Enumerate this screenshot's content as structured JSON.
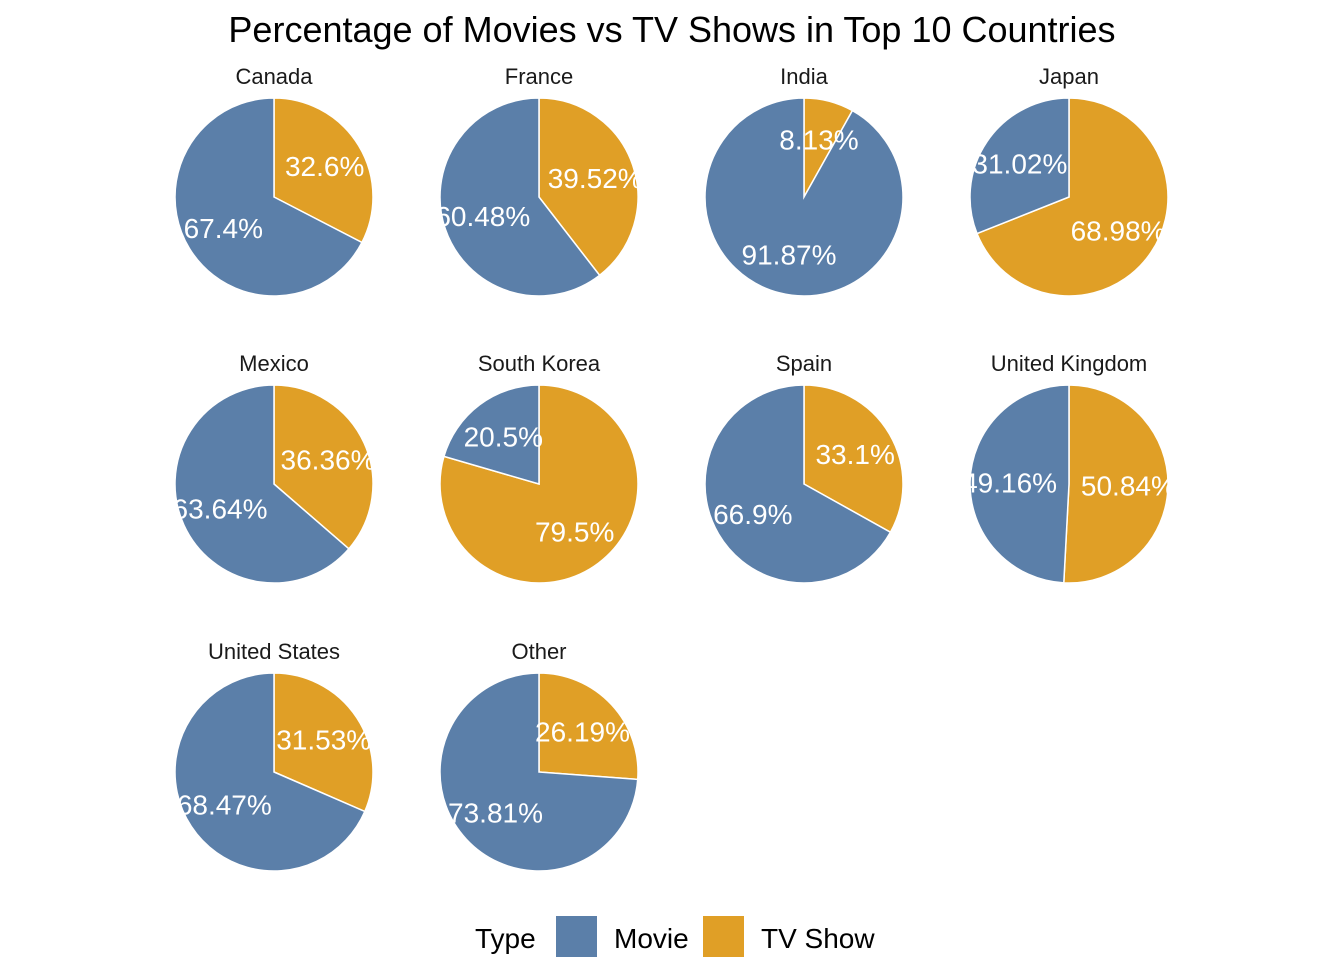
{
  "chart_data": {
    "type": "pie",
    "title": "Percentage of Movies vs TV Shows in Top 10 Countries",
    "legend": {
      "title": "Type",
      "position": "bottom",
      "entries": [
        {
          "name": "Movie",
          "color": "#5b7fa9"
        },
        {
          "name": "TV Show",
          "color": "#e09f26"
        }
      ]
    },
    "facets": [
      {
        "country": "Canada",
        "slices": [
          {
            "type": "Movie",
            "value": 67.4,
            "label": "67.4%"
          },
          {
            "type": "TV Show",
            "value": 32.6,
            "label": "32.6%"
          }
        ]
      },
      {
        "country": "France",
        "slices": [
          {
            "type": "Movie",
            "value": 60.48,
            "label": "60.48%"
          },
          {
            "type": "TV Show",
            "value": 39.52,
            "label": "39.52%"
          }
        ]
      },
      {
        "country": "India",
        "slices": [
          {
            "type": "Movie",
            "value": 91.87,
            "label": "91.87%"
          },
          {
            "type": "TV Show",
            "value": 8.13,
            "label": "8.13%"
          }
        ]
      },
      {
        "country": "Japan",
        "slices": [
          {
            "type": "Movie",
            "value": 31.02,
            "label": "31.02%"
          },
          {
            "type": "TV Show",
            "value": 68.98,
            "label": "68.98%"
          }
        ]
      },
      {
        "country": "Mexico",
        "slices": [
          {
            "type": "Movie",
            "value": 63.64,
            "label": "63.64%"
          },
          {
            "type": "TV Show",
            "value": 36.36,
            "label": "36.36%"
          }
        ]
      },
      {
        "country": "South Korea",
        "slices": [
          {
            "type": "Movie",
            "value": 20.5,
            "label": "20.5%"
          },
          {
            "type": "TV Show",
            "value": 79.5,
            "label": "79.5%"
          }
        ]
      },
      {
        "country": "Spain",
        "slices": [
          {
            "type": "Movie",
            "value": 66.9,
            "label": "66.9%"
          },
          {
            "type": "TV Show",
            "value": 33.1,
            "label": "33.1%"
          }
        ]
      },
      {
        "country": "United Kingdom",
        "slices": [
          {
            "type": "Movie",
            "value": 49.16,
            "label": "49.16%"
          },
          {
            "type": "TV Show",
            "value": 50.84,
            "label": "50.84%"
          }
        ]
      },
      {
        "country": "United States",
        "slices": [
          {
            "type": "Movie",
            "value": 68.47,
            "label": "68.47%"
          },
          {
            "type": "TV Show",
            "value": 31.53,
            "label": "31.53%"
          }
        ]
      },
      {
        "country": "Other",
        "slices": [
          {
            "type": "Movie",
            "value": 73.81,
            "label": "73.81%"
          },
          {
            "type": "TV Show",
            "value": 26.19,
            "label": "26.19%"
          }
        ]
      }
    ]
  }
}
